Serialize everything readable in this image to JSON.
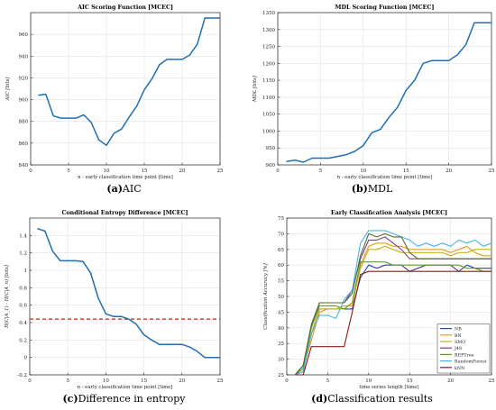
{
  "chart_data": [
    {
      "id": "aic",
      "type": "line",
      "title": "AIC Scoring Function [MCEC]",
      "xlabel": "n - early classification time point [time]",
      "ylabel": "AIC [bits]",
      "xlim": [
        0,
        25
      ],
      "ylim": [
        840,
        980
      ],
      "xticks": [
        0,
        5,
        10,
        15,
        20,
        25
      ],
      "yticks": [
        840,
        860,
        880,
        900,
        920,
        940,
        960
      ],
      "grid": true,
      "color": "#1f6fb2",
      "series": [
        {
          "x": [
            1,
            2,
            3,
            4,
            5,
            6,
            7,
            8,
            9,
            10,
            11,
            12,
            13,
            14,
            15,
            16,
            17,
            18,
            19,
            20,
            21,
            22,
            23,
            24,
            25
          ],
          "y": [
            904,
            905,
            885,
            883,
            883,
            883,
            886,
            879,
            863,
            858,
            869,
            873,
            884,
            894,
            909,
            919,
            932,
            937,
            937,
            937,
            941,
            951,
            975,
            975,
            975
          ]
        }
      ],
      "caption_letter": "(a)",
      "caption_text": "AIC"
    },
    {
      "id": "mdl",
      "type": "line",
      "title": "MDL Scoring Function [MCEC]",
      "xlabel": "n - early classification time point [time]",
      "ylabel": "MDL [bits]",
      "xlim": [
        0,
        25
      ],
      "ylim": [
        900,
        1350
      ],
      "xticks": [
        0,
        5,
        10,
        15,
        20,
        25
      ],
      "yticks": [
        900,
        950,
        1000,
        1050,
        1100,
        1150,
        1200,
        1250,
        1300,
        1350
      ],
      "grid": true,
      "color": "#1f6fb2",
      "series": [
        {
          "x": [
            1,
            2,
            3,
            4,
            5,
            6,
            7,
            8,
            9,
            10,
            11,
            12,
            13,
            14,
            15,
            16,
            17,
            18,
            19,
            20,
            21,
            22,
            23,
            24,
            25
          ],
          "y": [
            910,
            914,
            908,
            920,
            920,
            920,
            925,
            930,
            940,
            957,
            995,
            1005,
            1040,
            1070,
            1120,
            1150,
            1200,
            1208,
            1208,
            1208,
            1225,
            1255,
            1320,
            1320,
            1320
          ]
        }
      ],
      "caption_letter": "(b)",
      "caption_text": "MDL"
    },
    {
      "id": "entropy",
      "type": "line",
      "title": "Conditional Entropy Difference [MCEC]",
      "xlabel": "n - early classification time point [time]",
      "ylabel": "H(C|A_1) - H(C|A_n) [bits]",
      "xlim": [
        0,
        25
      ],
      "ylim": [
        -0.2,
        1.6
      ],
      "xticks": [
        0,
        5,
        10,
        15,
        20,
        25
      ],
      "yticks": [
        -0.2,
        0,
        0.2,
        0.4,
        0.6,
        0.8,
        1,
        1.2,
        1.4
      ],
      "ytick_labels": [
        "-0.2",
        "0",
        "0.2",
        "0.4",
        "0.6",
        "0.8",
        "1",
        "1.2",
        "1.4"
      ],
      "grid": true,
      "color": "#1f6fb2",
      "threshold": {
        "y": 0.44,
        "color": "#cc2200",
        "style": "dashed"
      },
      "series": [
        {
          "x": [
            1,
            2,
            3,
            4,
            5,
            6,
            7,
            8,
            9,
            10,
            11,
            12,
            13,
            14,
            15,
            16,
            17,
            18,
            19,
            20,
            21,
            22,
            23,
            24,
            25
          ],
          "y": [
            1.48,
            1.45,
            1.22,
            1.11,
            1.11,
            1.11,
            1.1,
            0.97,
            0.68,
            0.5,
            0.47,
            0.47,
            0.44,
            0.38,
            0.26,
            0.2,
            0.15,
            0.15,
            0.15,
            0.15,
            0.12,
            0.07,
            0.0,
            0.0,
            0.0
          ]
        }
      ],
      "caption_letter": "(c)",
      "caption_text": "Difference in entropy"
    },
    {
      "id": "accuracy",
      "type": "line",
      "title": "Early Classification Analysis [MCEC]",
      "xlabel": "time series length [time]",
      "ylabel": "Classification Accuracy [%]",
      "xlim": [
        0,
        25
      ],
      "ylim": [
        25,
        75
      ],
      "xticks": [
        0,
        5,
        10,
        15,
        20,
        25
      ],
      "yticks": [
        25,
        30,
        35,
        40,
        45,
        50,
        55,
        60,
        65,
        70,
        75
      ],
      "grid": true,
      "legend_position": "bottom-right",
      "series": [
        {
          "name": "NB",
          "color": "#1f4fa0",
          "x": [
            1,
            2,
            3,
            4,
            5,
            6,
            7,
            8,
            9,
            10,
            11,
            12,
            13,
            14,
            15,
            16,
            17,
            18,
            19,
            20,
            21,
            22,
            23,
            24,
            25
          ],
          "y": [
            25,
            26,
            38,
            46,
            46,
            46,
            46,
            46,
            56,
            60,
            59,
            60,
            60,
            60,
            58,
            59,
            60,
            60,
            60,
            60,
            58,
            60,
            59,
            59,
            59
          ]
        },
        {
          "name": "BN",
          "color": "#e69b1b",
          "x": [
            1,
            2,
            3,
            4,
            5,
            6,
            7,
            8,
            9,
            10,
            11,
            12,
            13,
            14,
            15,
            16,
            17,
            18,
            19,
            20,
            21,
            22,
            23,
            24,
            25
          ],
          "y": [
            25,
            27,
            36,
            45,
            46,
            46,
            47,
            47,
            60,
            66,
            67,
            67,
            66,
            66,
            65,
            65,
            65,
            65,
            65,
            64,
            65,
            66,
            64,
            63,
            63
          ]
        },
        {
          "name": "SMO",
          "color": "#c9b21a",
          "x": [
            1,
            2,
            3,
            4,
            5,
            6,
            7,
            8,
            9,
            10,
            11,
            12,
            13,
            14,
            15,
            16,
            17,
            18,
            19,
            20,
            21,
            22,
            23,
            24,
            25
          ],
          "y": [
            25,
            27,
            38,
            46,
            46,
            46,
            46,
            48,
            59,
            65,
            65,
            66,
            65,
            64,
            64,
            64,
            64,
            64,
            64,
            63,
            64,
            64,
            65,
            65,
            65
          ]
        },
        {
          "name": "J48",
          "color": "#7a3f8f",
          "x": [
            1,
            2,
            3,
            4,
            5,
            6,
            7,
            8,
            9,
            10,
            11,
            12,
            13,
            14,
            15,
            16,
            17,
            18,
            19,
            20,
            21,
            22,
            23,
            24,
            25
          ],
          "y": [
            25,
            28,
            40,
            48,
            48,
            48,
            48,
            52,
            62,
            68,
            68,
            69,
            67,
            65,
            62,
            62,
            62,
            62,
            62,
            62,
            62,
            62,
            62,
            62,
            62
          ]
        },
        {
          "name": "REPTree",
          "color": "#5aa02c",
          "x": [
            1,
            2,
            3,
            4,
            5,
            6,
            7,
            8,
            9,
            10,
            11,
            12,
            13,
            14,
            15,
            16,
            17,
            18,
            19,
            20,
            21,
            22,
            23,
            24,
            25
          ],
          "y": [
            25,
            27,
            40,
            47,
            47,
            47,
            46,
            48,
            61,
            61,
            61,
            61,
            60,
            60,
            60,
            60,
            60,
            60,
            60,
            60,
            60,
            59,
            59,
            58,
            58
          ]
        },
        {
          "name": "RandomForest",
          "color": "#4db3e6",
          "x": [
            1,
            2,
            3,
            4,
            5,
            6,
            7,
            8,
            9,
            10,
            11,
            12,
            13,
            14,
            15,
            16,
            17,
            18,
            19,
            20,
            21,
            22,
            23,
            24,
            25
          ],
          "y": [
            25,
            26,
            38,
            44,
            44,
            43,
            49,
            52,
            67,
            71,
            71,
            71,
            70,
            69,
            68,
            66,
            67,
            66,
            67,
            66,
            68,
            67,
            68,
            66,
            67
          ]
        },
        {
          "name": "kNN",
          "color": "#8b1a1a",
          "x": [
            1,
            2,
            3,
            4,
            5,
            6,
            7,
            8,
            9,
            10,
            11,
            12,
            13,
            14,
            15,
            16,
            17,
            18,
            19,
            20,
            21,
            22,
            23,
            24,
            25
          ],
          "y": [
            25,
            25,
            34,
            34,
            34,
            34,
            34,
            45,
            57,
            58,
            58,
            58,
            58,
            58,
            58,
            58,
            58,
            58,
            58,
            58,
            58,
            58,
            58,
            58,
            58
          ]
        },
        {
          "name": "",
          "color": "#556b2f",
          "x": [
            1,
            2,
            3,
            4,
            5,
            6,
            7,
            8,
            9,
            10,
            11,
            12,
            13,
            14,
            15,
            16,
            17,
            18,
            19,
            20,
            21,
            22,
            23,
            24,
            25
          ],
          "y": [
            25,
            28,
            41,
            48,
            48,
            48,
            48,
            51,
            63,
            70,
            69,
            70,
            69,
            69,
            64,
            62,
            62,
            62,
            62,
            62,
            62,
            62,
            62,
            62,
            62
          ]
        }
      ],
      "caption_letter": "(d)",
      "caption_text": "Classification results"
    }
  ]
}
